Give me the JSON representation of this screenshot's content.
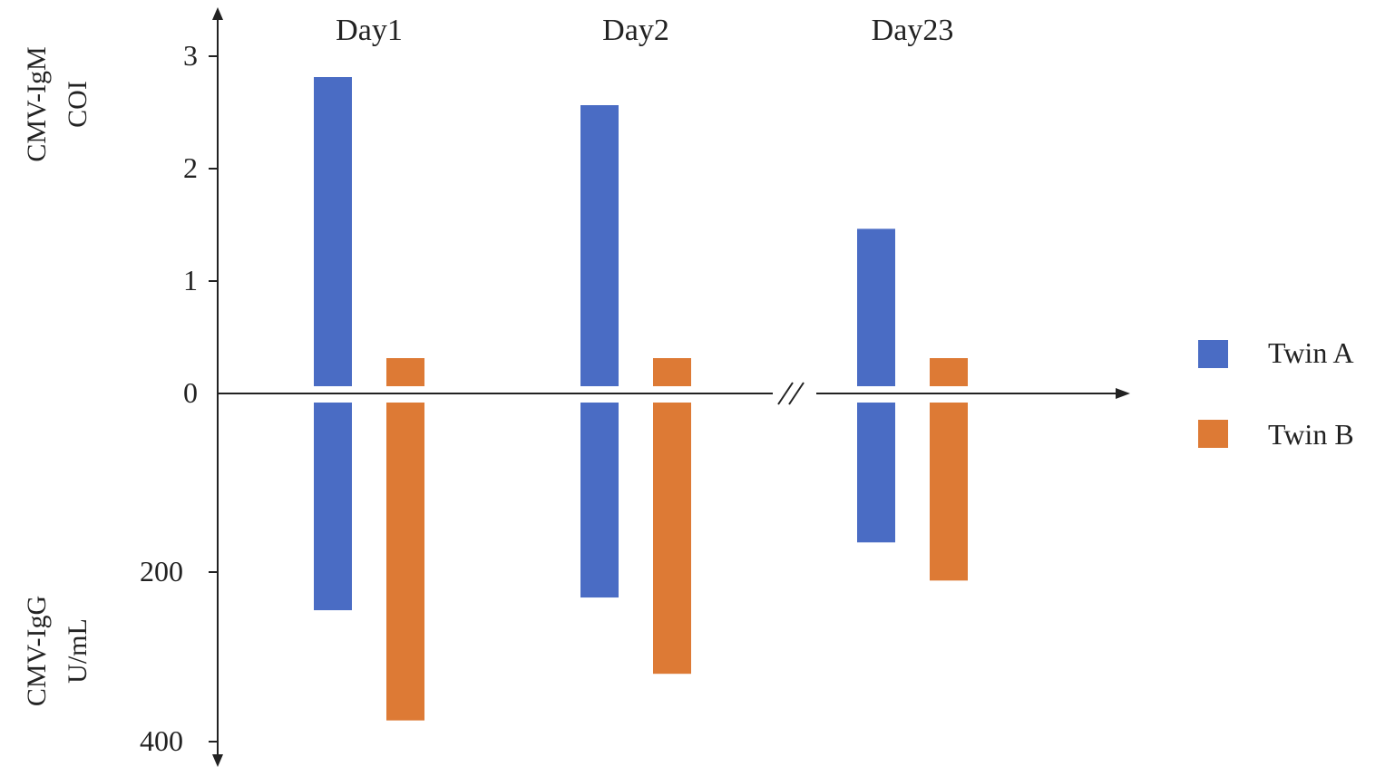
{
  "chart_data": {
    "type": "bar",
    "categories": [
      "Day1",
      "Day2",
      "Day23"
    ],
    "upper_panel": {
      "ylabel": [
        "CMV-IgM",
        "COI"
      ],
      "ylim": [
        0,
        3
      ],
      "ticks": [
        "3",
        "2",
        "1",
        "0"
      ],
      "series": [
        {
          "name": "Twin A",
          "values": [
            2.75,
            2.5,
            1.4
          ]
        },
        {
          "name": "Twin B",
          "values": [
            0.25,
            0.25,
            0.25
          ]
        }
      ]
    },
    "lower_panel": {
      "ylabel": [
        "CMV-IgG",
        "U/mL"
      ],
      "ylim": [
        0,
        400
      ],
      "ticks": [
        "200",
        "400"
      ],
      "series": [
        {
          "name": "Twin A",
          "values": [
            245,
            230,
            165
          ]
        },
        {
          "name": "Twin B",
          "values": [
            375,
            320,
            210
          ]
        }
      ]
    },
    "axis_break_between": [
      "Day2",
      "Day23"
    ],
    "legend": {
      "position": "right",
      "entries": [
        "Twin A",
        "Twin B"
      ]
    },
    "colors": {
      "Twin A": "#4a6cc4",
      "Twin B": "#dd7a35"
    },
    "grid": false
  }
}
